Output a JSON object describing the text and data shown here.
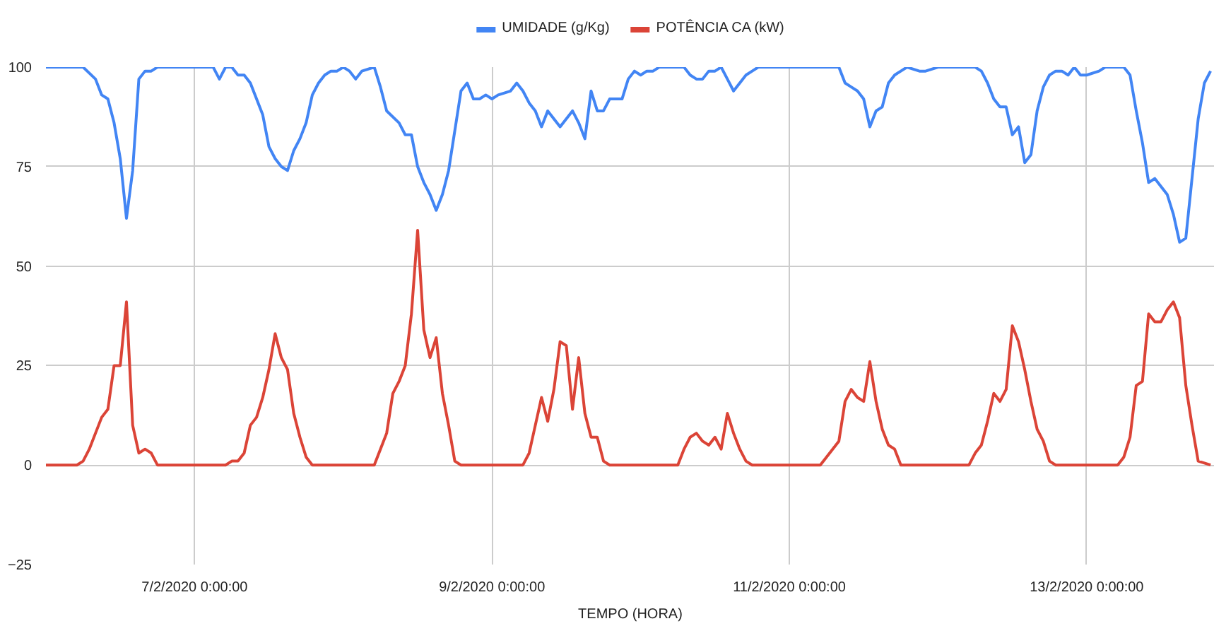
{
  "chart_data": {
    "type": "line",
    "xlabel": "TEMPO (HORA)",
    "legend": "top",
    "grid": true,
    "xlim": [
      "2020-02-06T00:00",
      "2020-02-13T20:40"
    ],
    "xticks": [
      {
        "value": "2020-02-07T00:00",
        "label": "7/2/2020 0:00:00"
      },
      {
        "value": "2020-02-09T00:00",
        "label": "9/2/2020 0:00:00"
      },
      {
        "value": "2020-02-11T00:00",
        "label": "11/2/2020 0:00:00"
      },
      {
        "value": "2020-02-13T00:00",
        "label": "13/2/2020 0:00:00"
      }
    ],
    "ylim": [
      -25,
      100
    ],
    "yticks": [
      -25,
      0,
      25,
      50,
      75,
      100
    ],
    "series": [
      {
        "name": "UMIDADE (g/Kg)",
        "color": "#4285f4",
        "x": [
          "2020-02-06T00:00",
          "2020-02-06T06:00",
          "2020-02-06T08:00",
          "2020-02-06T09:00",
          "2020-02-06T10:00",
          "2020-02-06T11:00",
          "2020-02-06T12:00",
          "2020-02-06T13:00",
          "2020-02-06T14:00",
          "2020-02-06T15:00",
          "2020-02-06T16:00",
          "2020-02-06T17:00",
          "2020-02-06T18:00",
          "2020-02-07T03:00",
          "2020-02-07T04:00",
          "2020-02-07T05:00",
          "2020-02-07T06:00",
          "2020-02-07T07:00",
          "2020-02-07T08:00",
          "2020-02-07T09:00",
          "2020-02-07T10:00",
          "2020-02-07T11:00",
          "2020-02-07T12:00",
          "2020-02-07T13:00",
          "2020-02-07T14:00",
          "2020-02-07T15:00",
          "2020-02-07T16:00",
          "2020-02-07T17:00",
          "2020-02-07T18:00",
          "2020-02-07T19:00",
          "2020-02-07T20:00",
          "2020-02-07T21:00",
          "2020-02-07T22:00",
          "2020-02-07T23:00",
          "2020-02-08T00:00",
          "2020-02-08T01:00",
          "2020-02-08T02:00",
          "2020-02-08T03:00",
          "2020-02-08T05:00",
          "2020-02-08T06:00",
          "2020-02-08T07:00",
          "2020-02-08T09:00",
          "2020-02-08T10:00",
          "2020-02-08T11:00",
          "2020-02-08T12:00",
          "2020-02-08T13:00",
          "2020-02-08T14:00",
          "2020-02-08T15:00",
          "2020-02-08T16:00",
          "2020-02-08T17:00",
          "2020-02-08T18:00",
          "2020-02-08T19:00",
          "2020-02-08T20:00",
          "2020-02-08T21:00",
          "2020-02-08T22:00",
          "2020-02-08T23:00",
          "2020-02-09T00:00",
          "2020-02-09T01:00",
          "2020-02-09T03:00",
          "2020-02-09T04:00",
          "2020-02-09T05:00",
          "2020-02-09T06:00",
          "2020-02-09T07:00",
          "2020-02-09T08:00",
          "2020-02-09T09:00",
          "2020-02-09T10:00",
          "2020-02-09T11:00",
          "2020-02-09T13:00",
          "2020-02-09T14:00",
          "2020-02-09T15:00",
          "2020-02-09T16:00",
          "2020-02-09T17:00",
          "2020-02-09T18:00",
          "2020-02-09T19:00",
          "2020-02-09T20:00",
          "2020-02-09T21:00",
          "2020-02-09T22:00",
          "2020-02-09T23:00",
          "2020-02-10T00:00",
          "2020-02-10T01:00",
          "2020-02-10T02:00",
          "2020-02-10T03:00",
          "2020-02-10T07:00",
          "2020-02-10T08:00",
          "2020-02-10T09:00",
          "2020-02-10T10:00",
          "2020-02-10T11:00",
          "2020-02-10T12:00",
          "2020-02-10T13:00",
          "2020-02-10T14:00",
          "2020-02-10T15:00",
          "2020-02-10T16:00",
          "2020-02-10T17:00",
          "2020-02-10T18:00",
          "2020-02-10T19:00",
          "2020-02-10T21:00",
          "2020-02-11T08:00",
          "2020-02-11T09:00",
          "2020-02-11T10:00",
          "2020-02-11T11:00",
          "2020-02-11T12:00",
          "2020-02-11T13:00",
          "2020-02-11T14:00",
          "2020-02-11T15:00",
          "2020-02-11T16:00",
          "2020-02-11T17:00",
          "2020-02-11T18:00",
          "2020-02-11T19:00",
          "2020-02-11T21:00",
          "2020-02-11T22:00",
          "2020-02-12T00:00",
          "2020-02-12T06:00",
          "2020-02-12T07:00",
          "2020-02-12T08:00",
          "2020-02-12T09:00",
          "2020-02-12T10:00",
          "2020-02-12T11:00",
          "2020-02-12T12:00",
          "2020-02-12T13:00",
          "2020-02-12T14:00",
          "2020-02-12T15:00",
          "2020-02-12T16:00",
          "2020-02-12T17:00",
          "2020-02-12T18:00",
          "2020-02-12T19:00",
          "2020-02-12T20:00",
          "2020-02-12T21:00",
          "2020-02-12T22:00",
          "2020-02-12T23:00",
          "2020-02-13T00:00",
          "2020-02-13T02:00",
          "2020-02-13T03:00",
          "2020-02-13T06:00",
          "2020-02-13T07:00",
          "2020-02-13T08:00",
          "2020-02-13T09:00",
          "2020-02-13T10:00",
          "2020-02-13T11:00",
          "2020-02-13T12:00",
          "2020-02-13T13:00",
          "2020-02-13T14:00",
          "2020-02-13T15:00",
          "2020-02-13T16:00",
          "2020-02-13T17:00",
          "2020-02-13T18:00",
          "2020-02-13T19:00",
          "2020-02-13T20:00"
        ],
        "values": [
          100,
          100,
          97,
          93,
          92,
          86,
          77,
          62,
          74,
          97,
          99,
          99,
          100,
          100,
          97,
          100,
          100,
          98,
          98,
          96,
          92,
          88,
          80,
          77,
          75,
          74,
          79,
          82,
          86,
          93,
          96,
          98,
          99,
          99,
          100,
          99,
          97,
          99,
          100,
          95,
          89,
          86,
          83,
          83,
          75,
          71,
          68,
          64,
          68,
          74,
          84,
          94,
          96,
          92,
          92,
          93,
          92,
          93,
          94,
          96,
          94,
          91,
          89,
          85,
          89,
          87,
          85,
          89,
          86,
          82,
          94,
          89,
          89,
          92,
          92,
          92,
          97,
          99,
          98,
          99,
          99,
          100,
          100,
          98,
          97,
          97,
          99,
          99,
          100,
          97,
          94,
          96,
          98,
          99,
          100,
          100,
          100,
          96,
          95,
          94,
          92,
          85,
          89,
          90,
          96,
          98,
          99,
          100,
          99,
          99,
          100,
          100,
          99,
          96,
          92,
          90,
          90,
          83,
          85,
          76,
          78,
          89,
          95,
          98,
          99,
          99,
          98,
          100,
          98,
          98,
          99,
          100,
          100,
          98,
          89,
          81,
          71,
          72,
          70,
          68,
          63,
          56,
          57,
          72,
          87,
          96,
          99
        ]
      },
      {
        "name": "POTÊNCIA CA (kW)",
        "color": "#db4437",
        "x": [
          "2020-02-06T00:00",
          "2020-02-06T05:00",
          "2020-02-06T06:00",
          "2020-02-06T07:00",
          "2020-02-06T08:00",
          "2020-02-06T09:00",
          "2020-02-06T10:00",
          "2020-02-06T11:00",
          "2020-02-06T12:00",
          "2020-02-06T13:00",
          "2020-02-06T14:00",
          "2020-02-06T15:00",
          "2020-02-06T16:00",
          "2020-02-06T17:00",
          "2020-02-06T18:00",
          "2020-02-06T19:00",
          "2020-02-07T05:00",
          "2020-02-07T06:00",
          "2020-02-07T07:00",
          "2020-02-07T08:00",
          "2020-02-07T09:00",
          "2020-02-07T10:00",
          "2020-02-07T11:00",
          "2020-02-07T12:00",
          "2020-02-07T13:00",
          "2020-02-07T14:00",
          "2020-02-07T15:00",
          "2020-02-07T16:00",
          "2020-02-07T17:00",
          "2020-02-07T18:00",
          "2020-02-07T19:00",
          "2020-02-08T05:00",
          "2020-02-08T06:00",
          "2020-02-08T07:00",
          "2020-02-08T08:00",
          "2020-02-08T09:00",
          "2020-02-08T10:00",
          "2020-02-08T11:00",
          "2020-02-08T12:00",
          "2020-02-08T13:00",
          "2020-02-08T14:00",
          "2020-02-08T15:00",
          "2020-02-08T16:00",
          "2020-02-08T17:00",
          "2020-02-08T18:00",
          "2020-02-08T19:00",
          "2020-02-09T05:00",
          "2020-02-09T06:00",
          "2020-02-09T07:00",
          "2020-02-09T08:00",
          "2020-02-09T09:00",
          "2020-02-09T10:00",
          "2020-02-09T11:00",
          "2020-02-09T12:00",
          "2020-02-09T13:00",
          "2020-02-09T14:00",
          "2020-02-09T15:00",
          "2020-02-09T16:00",
          "2020-02-09T17:00",
          "2020-02-09T18:00",
          "2020-02-09T19:00",
          "2020-02-10T06:00",
          "2020-02-10T07:00",
          "2020-02-10T08:00",
          "2020-02-10T09:00",
          "2020-02-10T10:00",
          "2020-02-10T11:00",
          "2020-02-10T12:00",
          "2020-02-10T13:00",
          "2020-02-10T14:00",
          "2020-02-10T15:00",
          "2020-02-10T16:00",
          "2020-02-10T17:00",
          "2020-02-10T18:00",
          "2020-02-11T05:00",
          "2020-02-11T06:00",
          "2020-02-11T08:00",
          "2020-02-11T09:00",
          "2020-02-11T10:00",
          "2020-02-11T11:00",
          "2020-02-11T12:00",
          "2020-02-11T13:00",
          "2020-02-11T14:00",
          "2020-02-11T15:00",
          "2020-02-11T16:00",
          "2020-02-11T17:00",
          "2020-02-11T18:00",
          "2020-02-12T05:00",
          "2020-02-12T06:00",
          "2020-02-12T07:00",
          "2020-02-12T08:00",
          "2020-02-12T09:00",
          "2020-02-12T10:00",
          "2020-02-12T11:00",
          "2020-02-12T12:00",
          "2020-02-12T13:00",
          "2020-02-12T14:00",
          "2020-02-12T15:00",
          "2020-02-12T16:00",
          "2020-02-12T17:00",
          "2020-02-12T18:00",
          "2020-02-12T19:00",
          "2020-02-13T05:00",
          "2020-02-13T06:00",
          "2020-02-13T07:00",
          "2020-02-13T08:00",
          "2020-02-13T09:00",
          "2020-02-13T10:00",
          "2020-02-13T11:00",
          "2020-02-13T12:00",
          "2020-02-13T13:00",
          "2020-02-13T14:00",
          "2020-02-13T15:00",
          "2020-02-13T16:00",
          "2020-02-13T17:00",
          "2020-02-13T18:00",
          "2020-02-13T20:00"
        ],
        "values": [
          0,
          0,
          1,
          4,
          8,
          12,
          14,
          25,
          25,
          41,
          10,
          3,
          4,
          3,
          0,
          0,
          0,
          1,
          1,
          3,
          10,
          12,
          17,
          24,
          33,
          27,
          24,
          13,
          7,
          2,
          0,
          0,
          4,
          8,
          18,
          21,
          25,
          38,
          59,
          34,
          27,
          32,
          18,
          10,
          1,
          0,
          0,
          3,
          10,
          17,
          11,
          19,
          31,
          30,
          14,
          27,
          13,
          7,
          7,
          1,
          0,
          0,
          4,
          7,
          8,
          6,
          5,
          7,
          4,
          13,
          8,
          4,
          1,
          0,
          0,
          2,
          6,
          16,
          19,
          17,
          16,
          26,
          16,
          9,
          5,
          4,
          0,
          0,
          3,
          5,
          11,
          18,
          16,
          19,
          35,
          31,
          24,
          16,
          9,
          6,
          1,
          0,
          0,
          2,
          7,
          20,
          21,
          38,
          36,
          36,
          39,
          41,
          37,
          20,
          10,
          1,
          0
        ]
      }
    ]
  }
}
